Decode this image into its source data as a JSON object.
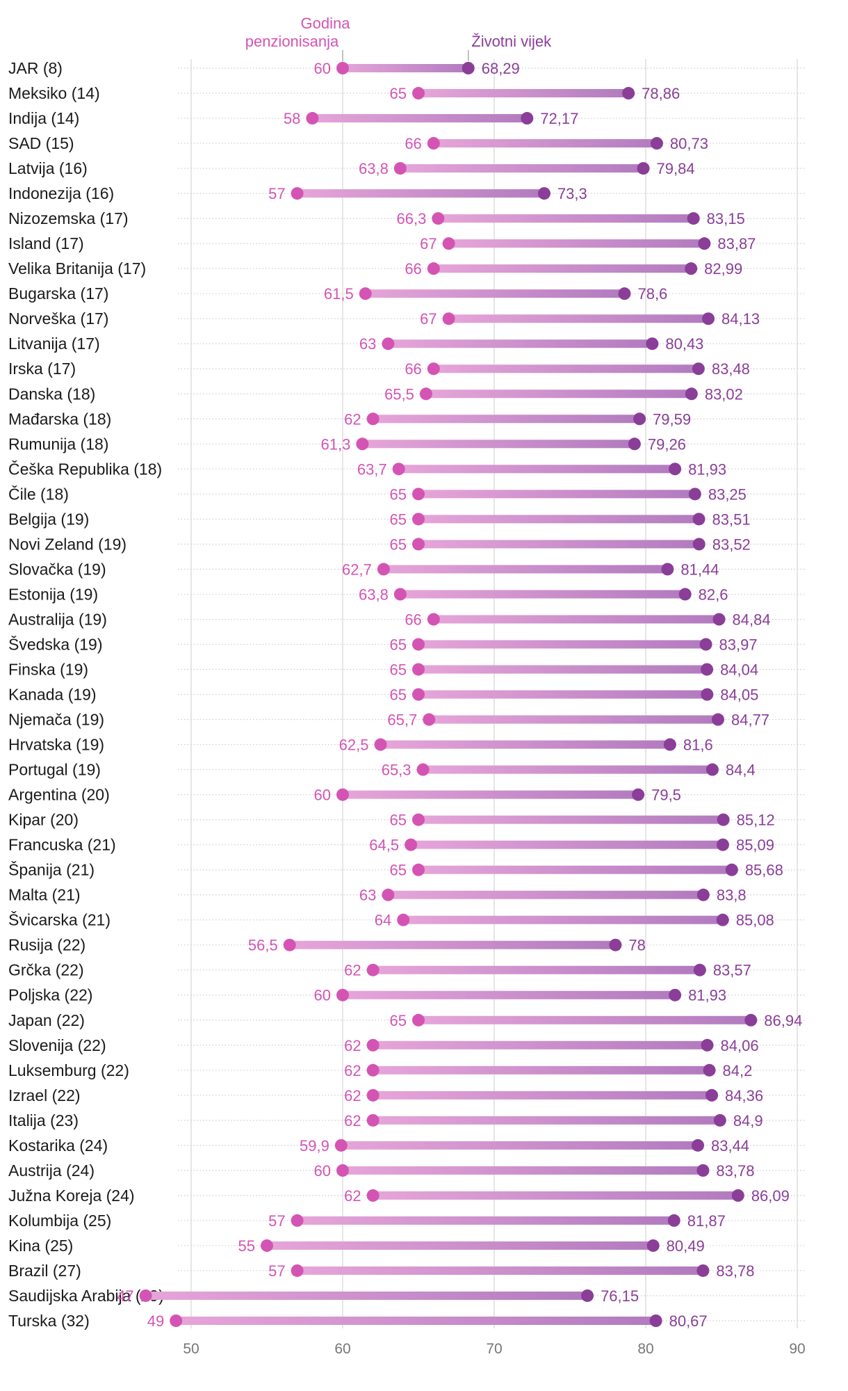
{
  "chart_data": {
    "type": "dumbbell",
    "legend": {
      "retirement": "Godina penzionisanja",
      "retirement_lines": [
        "Godina",
        "penzionisanja"
      ],
      "life": "Životni vijek"
    },
    "colors": {
      "retirement": "#d454b4",
      "life": "#8a3e98",
      "bar_start": "#e6a5d9",
      "bar_end": "#b27bbf",
      "grid": "#d4d4d4",
      "dots": "#cccccc"
    },
    "xlim": [
      45,
      90
    ],
    "ticks": [
      50,
      60,
      70,
      80,
      90
    ],
    "rows": [
      {
        "label": "JAR (8)",
        "retirement": 60,
        "life": 68.29,
        "retirement_text": "60",
        "life_text": "68,29"
      },
      {
        "label": "Meksiko (14)",
        "retirement": 65,
        "life": 78.86,
        "retirement_text": "65",
        "life_text": "78,86"
      },
      {
        "label": "Indija (14)",
        "retirement": 58,
        "life": 72.17,
        "retirement_text": "58",
        "life_text": "72,17"
      },
      {
        "label": "SAD (15)",
        "retirement": 66,
        "life": 80.73,
        "retirement_text": "66",
        "life_text": "80,73"
      },
      {
        "label": "Latvija (16)",
        "retirement": 63.8,
        "life": 79.84,
        "retirement_text": "63,8",
        "life_text": "79,84"
      },
      {
        "label": "Indonezija (16)",
        "retirement": 57,
        "life": 73.3,
        "retirement_text": "57",
        "life_text": "73,3"
      },
      {
        "label": "Nizozemska (17)",
        "retirement": 66.3,
        "life": 83.15,
        "retirement_text": "66,3",
        "life_text": "83,15"
      },
      {
        "label": "Island (17)",
        "retirement": 67,
        "life": 83.87,
        "retirement_text": "67",
        "life_text": "83,87"
      },
      {
        "label": "Velika Britanija (17)",
        "retirement": 66,
        "life": 82.99,
        "retirement_text": "66",
        "life_text": "82,99"
      },
      {
        "label": "Bugarska (17)",
        "retirement": 61.5,
        "life": 78.6,
        "retirement_text": "61,5",
        "life_text": "78,6"
      },
      {
        "label": "Norveška (17)",
        "retirement": 67,
        "life": 84.13,
        "retirement_text": "67",
        "life_text": "84,13"
      },
      {
        "label": "Litvanija (17)",
        "retirement": 63,
        "life": 80.43,
        "retirement_text": "63",
        "life_text": "80,43"
      },
      {
        "label": "Irska (17)",
        "retirement": 66,
        "life": 83.48,
        "retirement_text": "66",
        "life_text": "83,48"
      },
      {
        "label": "Danska (18)",
        "retirement": 65.5,
        "life": 83.02,
        "retirement_text": "65,5",
        "life_text": "83,02"
      },
      {
        "label": "Mađarska (18)",
        "retirement": 62,
        "life": 79.59,
        "retirement_text": "62",
        "life_text": "79,59"
      },
      {
        "label": "Rumunija (18)",
        "retirement": 61.3,
        "life": 79.26,
        "retirement_text": "61,3",
        "life_text": "79,26"
      },
      {
        "label": "Češka Republika (18)",
        "retirement": 63.7,
        "life": 81.93,
        "retirement_text": "63,7",
        "life_text": "81,93"
      },
      {
        "label": "Čile (18)",
        "retirement": 65,
        "life": 83.25,
        "retirement_text": "65",
        "life_text": "83,25"
      },
      {
        "label": "Belgija (19)",
        "retirement": 65,
        "life": 83.51,
        "retirement_text": "65",
        "life_text": "83,51"
      },
      {
        "label": "Novi Zeland (19)",
        "retirement": 65,
        "life": 83.52,
        "retirement_text": "65",
        "life_text": "83,52"
      },
      {
        "label": "Slovačka (19)",
        "retirement": 62.7,
        "life": 81.44,
        "retirement_text": "62,7",
        "life_text": "81,44"
      },
      {
        "label": "Estonija (19)",
        "retirement": 63.8,
        "life": 82.6,
        "retirement_text": "63,8",
        "life_text": "82,6"
      },
      {
        "label": "Australija (19)",
        "retirement": 66,
        "life": 84.84,
        "retirement_text": "66",
        "life_text": "84,84"
      },
      {
        "label": "Švedska (19)",
        "retirement": 65,
        "life": 83.97,
        "retirement_text": "65",
        "life_text": "83,97"
      },
      {
        "label": "Finska (19)",
        "retirement": 65,
        "life": 84.04,
        "retirement_text": "65",
        "life_text": "84,04"
      },
      {
        "label": "Kanada (19)",
        "retirement": 65,
        "life": 84.05,
        "retirement_text": "65",
        "life_text": "84,05"
      },
      {
        "label": "Njemača (19)",
        "retirement": 65.7,
        "life": 84.77,
        "retirement_text": "65,7",
        "life_text": "84,77"
      },
      {
        "label": "Hrvatska (19)",
        "retirement": 62.5,
        "life": 81.6,
        "retirement_text": "62,5",
        "life_text": "81,6"
      },
      {
        "label": "Portugal (19)",
        "retirement": 65.3,
        "life": 84.4,
        "retirement_text": "65,3",
        "life_text": "84,4"
      },
      {
        "label": "Argentina (20)",
        "retirement": 60,
        "life": 79.5,
        "retirement_text": "60",
        "life_text": "79,5"
      },
      {
        "label": "Kipar (20)",
        "retirement": 65,
        "life": 85.12,
        "retirement_text": "65",
        "life_text": "85,12"
      },
      {
        "label": "Francuska (21)",
        "retirement": 64.5,
        "life": 85.09,
        "retirement_text": "64,5",
        "life_text": "85,09"
      },
      {
        "label": "Španija (21)",
        "retirement": 65,
        "life": 85.68,
        "retirement_text": "65",
        "life_text": "85,68"
      },
      {
        "label": "Malta (21)",
        "retirement": 63,
        "life": 83.8,
        "retirement_text": "63",
        "life_text": "83,8"
      },
      {
        "label": "Švicarska (21)",
        "retirement": 64,
        "life": 85.08,
        "retirement_text": "64",
        "life_text": "85,08"
      },
      {
        "label": "Rusija (22)",
        "retirement": 56.5,
        "life": 78,
        "retirement_text": "56,5",
        "life_text": "78"
      },
      {
        "label": "Grčka (22)",
        "retirement": 62,
        "life": 83.57,
        "retirement_text": "62",
        "life_text": "83,57"
      },
      {
        "label": "Poljska (22)",
        "retirement": 60,
        "life": 81.93,
        "retirement_text": "60",
        "life_text": "81,93"
      },
      {
        "label": "Japan (22)",
        "retirement": 65,
        "life": 86.94,
        "retirement_text": "65",
        "life_text": "86,94"
      },
      {
        "label": "Slovenija (22)",
        "retirement": 62,
        "life": 84.06,
        "retirement_text": "62",
        "life_text": "84,06"
      },
      {
        "label": "Luksemburg (22)",
        "retirement": 62,
        "life": 84.2,
        "retirement_text": "62",
        "life_text": "84,2"
      },
      {
        "label": "Izrael (22)",
        "retirement": 62,
        "life": 84.36,
        "retirement_text": "62",
        "life_text": "84,36"
      },
      {
        "label": "Italija (23)",
        "retirement": 62,
        "life": 84.9,
        "retirement_text": "62",
        "life_text": "84,9"
      },
      {
        "label": "Kostarika (24)",
        "retirement": 59.9,
        "life": 83.44,
        "retirement_text": "59,9",
        "life_text": "83,44"
      },
      {
        "label": "Austrija (24)",
        "retirement": 60,
        "life": 83.78,
        "retirement_text": "60",
        "life_text": "83,78"
      },
      {
        "label": "Južna Koreja (24)",
        "retirement": 62,
        "life": 86.09,
        "retirement_text": "62",
        "life_text": "86,09"
      },
      {
        "label": "Kolumbija (25)",
        "retirement": 57,
        "life": 81.87,
        "retirement_text": "57",
        "life_text": "81,87"
      },
      {
        "label": "Kina (25)",
        "retirement": 55,
        "life": 80.49,
        "retirement_text": "55",
        "life_text": "80,49"
      },
      {
        "label": "Brazil (27)",
        "retirement": 57,
        "life": 83.78,
        "retirement_text": "57",
        "life_text": "83,78"
      },
      {
        "label": "Saudijska Arabija (29)",
        "retirement": 47,
        "life": 76.15,
        "retirement_text": "47",
        "life_text": "76,15"
      },
      {
        "label": "Turska (32)",
        "retirement": 49,
        "life": 80.67,
        "retirement_text": "49",
        "life_text": "80,67"
      }
    ]
  }
}
